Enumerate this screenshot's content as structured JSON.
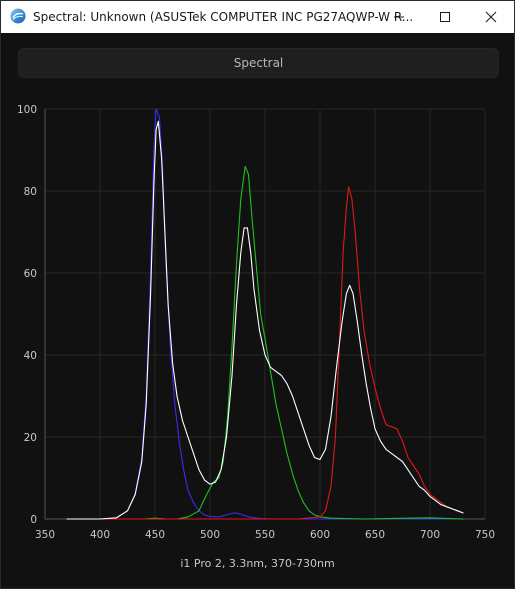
{
  "window": {
    "title": "Spectral: Unknown (ASUSTek COMPUTER INC PG27AQWP-W R...",
    "app_icon": "spectral-app-icon",
    "controls": [
      "minimize-icon",
      "maximize-icon",
      "close-icon"
    ]
  },
  "toolbar": {
    "section_label": "Spectral"
  },
  "footer": {
    "caption": "i1 Pro 2, 3.3nm, 370-730nm"
  },
  "chart_data": {
    "type": "line",
    "title": "",
    "xlabel": "",
    "ylabel": "",
    "xlim": [
      350,
      750
    ],
    "ylim": [
      0,
      100
    ],
    "x_ticks": [
      350,
      400,
      450,
      500,
      550,
      600,
      650,
      700,
      750
    ],
    "y_ticks": [
      0,
      20,
      40,
      60,
      80,
      100
    ],
    "grid": true,
    "series": [
      {
        "color": "#3a2cf0",
        "points": [
          [
            370,
            0
          ],
          [
            400,
            0
          ],
          [
            415,
            0.3
          ],
          [
            425,
            2
          ],
          [
            432,
            6
          ],
          [
            438,
            15
          ],
          [
            442,
            30
          ],
          [
            446,
            60
          ],
          [
            449,
            90
          ],
          [
            451,
            100
          ],
          [
            454,
            98
          ],
          [
            457,
            85
          ],
          [
            460,
            62
          ],
          [
            464,
            42
          ],
          [
            468,
            28
          ],
          [
            472,
            19
          ],
          [
            476,
            12
          ],
          [
            480,
            7
          ],
          [
            485,
            4
          ],
          [
            490,
            2
          ],
          [
            495,
            1
          ],
          [
            500,
            0.6
          ],
          [
            508,
            0.5
          ],
          [
            515,
            1
          ],
          [
            522,
            1.5
          ],
          [
            528,
            1.2
          ],
          [
            535,
            0.5
          ],
          [
            545,
            0.1
          ],
          [
            560,
            0
          ],
          [
            600,
            0
          ],
          [
            650,
            0
          ],
          [
            700,
            0
          ],
          [
            730,
            0
          ]
        ]
      },
      {
        "color": "#20c020",
        "points": [
          [
            370,
            0
          ],
          [
            440,
            0
          ],
          [
            450,
            0.2
          ],
          [
            460,
            0
          ],
          [
            470,
            0
          ],
          [
            480,
            0.5
          ],
          [
            490,
            2
          ],
          [
            497,
            6
          ],
          [
            503,
            9
          ],
          [
            508,
            10
          ],
          [
            512,
            14
          ],
          [
            516,
            25
          ],
          [
            520,
            42
          ],
          [
            524,
            62
          ],
          [
            528,
            78
          ],
          [
            532,
            86
          ],
          [
            535,
            84
          ],
          [
            538,
            74
          ],
          [
            542,
            62
          ],
          [
            546,
            50
          ],
          [
            550,
            44
          ],
          [
            555,
            36
          ],
          [
            560,
            28
          ],
          [
            565,
            22
          ],
          [
            570,
            16
          ],
          [
            575,
            11
          ],
          [
            580,
            7
          ],
          [
            585,
            4
          ],
          [
            590,
            2
          ],
          [
            595,
            1
          ],
          [
            600,
            0.5
          ],
          [
            610,
            0.2
          ],
          [
            640,
            0
          ],
          [
            680,
            0.2
          ],
          [
            700,
            0.3
          ],
          [
            730,
            0
          ]
        ]
      },
      {
        "color": "#e01818",
        "points": [
          [
            370,
            0
          ],
          [
            550,
            0
          ],
          [
            580,
            0
          ],
          [
            600,
            0.5
          ],
          [
            605,
            2
          ],
          [
            610,
            8
          ],
          [
            614,
            20
          ],
          [
            618,
            45
          ],
          [
            621,
            65
          ],
          [
            624,
            76
          ],
          [
            626,
            81
          ],
          [
            629,
            78
          ],
          [
            632,
            70
          ],
          [
            636,
            56
          ],
          [
            640,
            46
          ],
          [
            645,
            38
          ],
          [
            650,
            32
          ],
          [
            655,
            27
          ],
          [
            660,
            23
          ],
          [
            665,
            22.5
          ],
          [
            670,
            22
          ],
          [
            675,
            19
          ],
          [
            680,
            15
          ],
          [
            685,
            13
          ],
          [
            690,
            11
          ],
          [
            695,
            8
          ],
          [
            700,
            6
          ],
          [
            705,
            5
          ],
          [
            710,
            4
          ],
          [
            715,
            3
          ],
          [
            720,
            2.5
          ],
          [
            725,
            2
          ],
          [
            730,
            1.5
          ]
        ]
      },
      {
        "color": "#ffffff",
        "points": [
          [
            370,
            0
          ],
          [
            400,
            0
          ],
          [
            415,
            0.3
          ],
          [
            425,
            2
          ],
          [
            432,
            6
          ],
          [
            438,
            14
          ],
          [
            442,
            28
          ],
          [
            446,
            55
          ],
          [
            449,
            82
          ],
          [
            451,
            95
          ],
          [
            453,
            97
          ],
          [
            456,
            88
          ],
          [
            459,
            70
          ],
          [
            462,
            52
          ],
          [
            466,
            38
          ],
          [
            470,
            30
          ],
          [
            475,
            24
          ],
          [
            480,
            20
          ],
          [
            485,
            16
          ],
          [
            490,
            12
          ],
          [
            495,
            9.5
          ],
          [
            500,
            8.5
          ],
          [
            505,
            9
          ],
          [
            510,
            12
          ],
          [
            515,
            20
          ],
          [
            520,
            35
          ],
          [
            524,
            52
          ],
          [
            528,
            65
          ],
          [
            531,
            71
          ],
          [
            534,
            71
          ],
          [
            537,
            65
          ],
          [
            540,
            56
          ],
          [
            545,
            46
          ],
          [
            550,
            40
          ],
          [
            555,
            37
          ],
          [
            560,
            36
          ],
          [
            565,
            35
          ],
          [
            570,
            33
          ],
          [
            575,
            30
          ],
          [
            580,
            26
          ],
          [
            585,
            22
          ],
          [
            590,
            18
          ],
          [
            595,
            15
          ],
          [
            600,
            14.5
          ],
          [
            605,
            17
          ],
          [
            610,
            25
          ],
          [
            615,
            37
          ],
          [
            620,
            48
          ],
          [
            624,
            55
          ],
          [
            627,
            57
          ],
          [
            630,
            55
          ],
          [
            634,
            48
          ],
          [
            638,
            40
          ],
          [
            642,
            33
          ],
          [
            646,
            27
          ],
          [
            650,
            22
          ],
          [
            655,
            19
          ],
          [
            660,
            17
          ],
          [
            665,
            16
          ],
          [
            670,
            15
          ],
          [
            675,
            14
          ],
          [
            680,
            12
          ],
          [
            685,
            10
          ],
          [
            690,
            8
          ],
          [
            695,
            7
          ],
          [
            700,
            5.5
          ],
          [
            705,
            4.5
          ],
          [
            710,
            3.5
          ],
          [
            715,
            3
          ],
          [
            720,
            2.5
          ],
          [
            725,
            2
          ],
          [
            730,
            1.5
          ]
        ]
      }
    ]
  }
}
